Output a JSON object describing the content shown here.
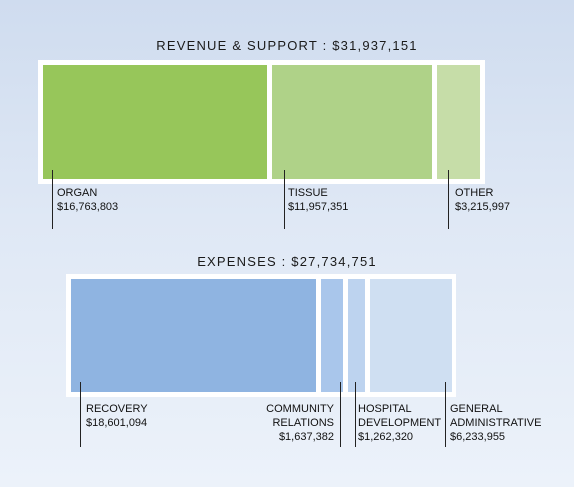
{
  "chart_data": [
    {
      "type": "bar",
      "title": "REVENUE & SUPPORT : $31,937,151",
      "total": 31937151,
      "categories": [
        "ORGAN",
        "TISSUE",
        "OTHER"
      ],
      "values": [
        16763803,
        11957351,
        3215997
      ],
      "value_labels": [
        "$16,763,803",
        "$11,957,351",
        "$3,215,997"
      ],
      "colors": [
        "#97c65a",
        "#afd288",
        "#c6dda8"
      ]
    },
    {
      "type": "bar",
      "title": "EXPENSES : $27,734,751",
      "total": 27734751,
      "categories": [
        "RECOVERY",
        "COMMUNITY RELATIONS",
        "HOSPITAL DEVELOPMENT",
        "GENERAL ADMINISTRATIVE"
      ],
      "category_lines": [
        [
          "RECOVERY"
        ],
        [
          "COMMUNITY",
          "RELATIONS"
        ],
        [
          "HOSPITAL",
          "DEVELOPMENT"
        ],
        [
          "GENERAL",
          "ADMINISTRATIVE"
        ]
      ],
      "values": [
        18601094,
        1637382,
        1262320,
        6233955
      ],
      "value_labels": [
        "$18,601,094",
        "$1,637,382",
        "$1,262,320",
        "$6,233,955"
      ],
      "colors": [
        "#8fb4e1",
        "#a9c6eb",
        "#bdd3ef",
        "#cfdff2"
      ]
    }
  ]
}
